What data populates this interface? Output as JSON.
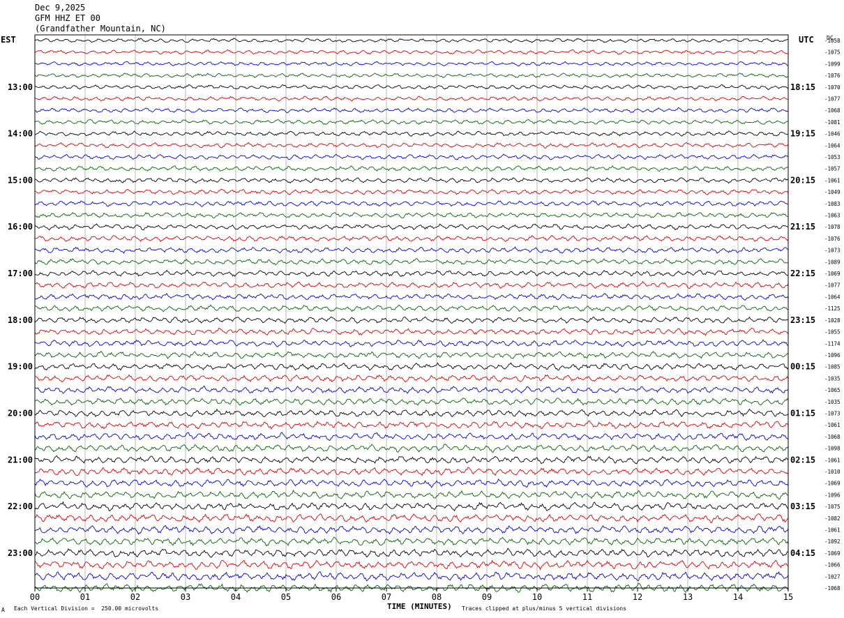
{
  "header": {
    "date": "Dec 9,2025",
    "station": "GFM HHZ ET 00",
    "location": "(Grandfather Mountain, NC)"
  },
  "left_zone": "EST",
  "right_zone": "UTC",
  "dc_label": "DC",
  "footer": {
    "scale_note": "Each Vertical Division =  250.00 microvolts",
    "clip_note": "Traces clipped at plus/minus 5 vertical divisions",
    "corner_mark": "A"
  },
  "colors": {
    "trace_cycle": [
      "#000000",
      "#dd0000",
      "#0000dd",
      "#006600"
    ],
    "grid": "#888888"
  },
  "chart_data": {
    "type": "line",
    "xlabel": "TIME (MINUTES)",
    "xlim": [
      0,
      15
    ],
    "x_ticks": [
      "00",
      "01",
      "02",
      "03",
      "04",
      "05",
      "06",
      "07",
      "08",
      "09",
      "10",
      "11",
      "12",
      "13",
      "14",
      "15"
    ],
    "trace_count": 48,
    "traces_per_hour": 4,
    "est_hour_labels": [
      "13:00",
      "14:00",
      "15:00",
      "16:00",
      "17:00",
      "18:00",
      "19:00",
      "20:00",
      "21:00",
      "22:00",
      "23:00"
    ],
    "utc_hour_labels": [
      "18:15",
      "19:15",
      "20:15",
      "21:15",
      "22:15",
      "23:15",
      "00:15",
      "01:15",
      "02:15",
      "03:15",
      "04:15"
    ],
    "dc_offsets": [
      "-1058",
      "-1075",
      "-1099",
      "-1076",
      "-1070",
      "-1077",
      "-1068",
      "-1081",
      "-1046",
      "-1064",
      "-1053",
      "-1057",
      "-1061",
      "-1049",
      "-1083",
      "-1063",
      "-1078",
      "-1076",
      "-1073",
      "-1089",
      "-1069",
      "-1077",
      "-1064",
      "-1125",
      "-1028",
      "-1055",
      "-1174",
      "-1096",
      "-1085",
      "-1035",
      "-1065",
      "-1035",
      "-1073",
      "-1061",
      "-1068",
      "-1098",
      "-1061",
      "-1010",
      "-1069",
      "-1096",
      "-1075",
      "-1082",
      "-1061",
      "-1092",
      "-1069",
      "-1066",
      "-1027",
      "-1068"
    ]
  }
}
